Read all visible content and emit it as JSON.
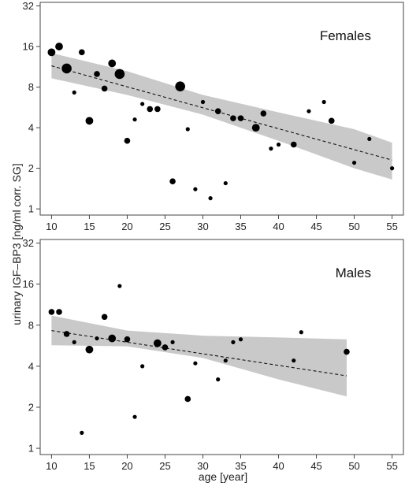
{
  "figure": {
    "ylabel": "urinary IGF–BP3 [ng/ml corr. SG]",
    "xlabel": "age [year]"
  },
  "chart_data": [
    {
      "type": "scatter",
      "title": "Females",
      "y_scale": "log2",
      "xlim": [
        8.5,
        56.5
      ],
      "ylim": [
        0.9,
        34
      ],
      "x_ticks": [
        10,
        15,
        20,
        25,
        30,
        35,
        40,
        45,
        50,
        55
      ],
      "y_ticks": [
        1,
        2,
        4,
        8,
        16,
        32
      ],
      "points": [
        {
          "x": 10,
          "y": 14.5,
          "size": 3
        },
        {
          "x": 11,
          "y": 16.0,
          "size": 3
        },
        {
          "x": 12,
          "y": 11.0,
          "size": 4
        },
        {
          "x": 13,
          "y": 7.3,
          "size": 1
        },
        {
          "x": 14,
          "y": 14.5,
          "size": 2
        },
        {
          "x": 15,
          "y": 4.5,
          "size": 3
        },
        {
          "x": 16,
          "y": 10.0,
          "size": 2
        },
        {
          "x": 17,
          "y": 7.8,
          "size": 2
        },
        {
          "x": 18,
          "y": 12.0,
          "size": 3
        },
        {
          "x": 19,
          "y": 10.0,
          "size": 4
        },
        {
          "x": 20,
          "y": 3.2,
          "size": 2
        },
        {
          "x": 21,
          "y": 4.6,
          "size": 1
        },
        {
          "x": 22,
          "y": 6.0,
          "size": 1
        },
        {
          "x": 23,
          "y": 5.5,
          "size": 2
        },
        {
          "x": 24,
          "y": 5.5,
          "size": 2
        },
        {
          "x": 26,
          "y": 1.6,
          "size": 2
        },
        {
          "x": 27,
          "y": 8.1,
          "size": 4
        },
        {
          "x": 28,
          "y": 3.9,
          "size": 1
        },
        {
          "x": 29,
          "y": 1.4,
          "size": 1
        },
        {
          "x": 30,
          "y": 6.2,
          "size": 1
        },
        {
          "x": 31,
          "y": 1.2,
          "size": 1
        },
        {
          "x": 32,
          "y": 5.3,
          "size": 2
        },
        {
          "x": 33,
          "y": 1.55,
          "size": 1
        },
        {
          "x": 34,
          "y": 4.7,
          "size": 2
        },
        {
          "x": 35,
          "y": 4.7,
          "size": 2
        },
        {
          "x": 37,
          "y": 4.0,
          "size": 3
        },
        {
          "x": 38,
          "y": 5.1,
          "size": 2
        },
        {
          "x": 39,
          "y": 2.8,
          "size": 1
        },
        {
          "x": 40,
          "y": 3.0,
          "size": 1
        },
        {
          "x": 42,
          "y": 3.0,
          "size": 2
        },
        {
          "x": 44,
          "y": 5.3,
          "size": 1
        },
        {
          "x": 46,
          "y": 6.2,
          "size": 1
        },
        {
          "x": 47,
          "y": 4.5,
          "size": 2
        },
        {
          "x": 50,
          "y": 2.2,
          "size": 1
        },
        {
          "x": 52,
          "y": 3.3,
          "size": 1
        },
        {
          "x": 55,
          "y": 2.0,
          "size": 1
        }
      ],
      "trend": {
        "x": [
          10,
          55
        ],
        "y": [
          11.5,
          2.3
        ]
      },
      "band": {
        "x": [
          10,
          20,
          30,
          40,
          50,
          55
        ],
        "lower": [
          9.3,
          7.0,
          5.0,
          3.2,
          2.0,
          1.65
        ],
        "upper": [
          14.3,
          10.5,
          7.0,
          5.2,
          3.9,
          3.1
        ]
      }
    },
    {
      "type": "scatter",
      "title": "Males",
      "y_scale": "log2",
      "xlim": [
        8.5,
        56.5
      ],
      "ylim": [
        0.9,
        34
      ],
      "x_ticks": [
        10,
        15,
        20,
        25,
        30,
        35,
        40,
        45,
        50,
        55
      ],
      "y_ticks": [
        1,
        2,
        4,
        8,
        16,
        32
      ],
      "points": [
        {
          "x": 10,
          "y": 10.0,
          "size": 2
        },
        {
          "x": 11,
          "y": 10.0,
          "size": 2
        },
        {
          "x": 12,
          "y": 6.9,
          "size": 2
        },
        {
          "x": 13,
          "y": 6.0,
          "size": 1
        },
        {
          "x": 14,
          "y": 1.3,
          "size": 1
        },
        {
          "x": 15,
          "y": 5.3,
          "size": 3
        },
        {
          "x": 16,
          "y": 6.4,
          "size": 1
        },
        {
          "x": 17,
          "y": 9.2,
          "size": 2
        },
        {
          "x": 18,
          "y": 6.4,
          "size": 3
        },
        {
          "x": 19,
          "y": 15.5,
          "size": 1
        },
        {
          "x": 20,
          "y": 6.3,
          "size": 2
        },
        {
          "x": 21,
          "y": 1.7,
          "size": 1
        },
        {
          "x": 22,
          "y": 4.0,
          "size": 1
        },
        {
          "x": 24,
          "y": 5.9,
          "size": 3
        },
        {
          "x": 25,
          "y": 5.5,
          "size": 2
        },
        {
          "x": 26,
          "y": 6.0,
          "size": 1
        },
        {
          "x": 28,
          "y": 2.3,
          "size": 2
        },
        {
          "x": 29,
          "y": 4.2,
          "size": 1
        },
        {
          "x": 32,
          "y": 3.2,
          "size": 1
        },
        {
          "x": 33,
          "y": 4.4,
          "size": 1
        },
        {
          "x": 34,
          "y": 6.0,
          "size": 1
        },
        {
          "x": 35,
          "y": 6.3,
          "size": 1
        },
        {
          "x": 42,
          "y": 4.4,
          "size": 1
        },
        {
          "x": 43,
          "y": 7.1,
          "size": 1
        },
        {
          "x": 49,
          "y": 5.1,
          "size": 2
        }
      ],
      "trend": {
        "x": [
          10,
          49
        ],
        "y": [
          7.3,
          3.4
        ]
      },
      "band": {
        "x": [
          10,
          20,
          30,
          40,
          49
        ],
        "lower": [
          5.7,
          5.6,
          4.6,
          3.2,
          2.4
        ],
        "upper": [
          9.4,
          7.3,
          6.7,
          6.5,
          6.3
        ]
      }
    }
  ]
}
